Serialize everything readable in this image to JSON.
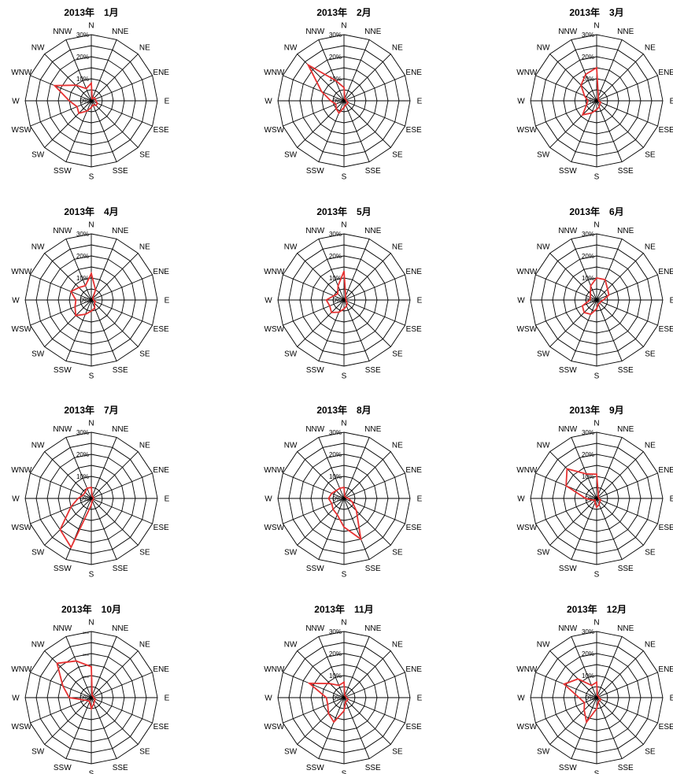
{
  "chart_data": [
    {
      "type": "radar",
      "title": "2013年　1月",
      "directions": [
        "N",
        "NNE",
        "NE",
        "ENE",
        "E",
        "ESE",
        "SE",
        "SSE",
        "S",
        "SSW",
        "SW",
        "WSW",
        "W",
        "WNW",
        "NW",
        "NNW"
      ],
      "rlim": [
        0,
        30
      ],
      "r_ticks": [
        "0%",
        "10%",
        "20%",
        "30%"
      ],
      "series": [
        {
          "values": [
            8,
            1,
            2,
            2,
            2,
            3,
            3,
            2,
            3,
            5,
            8,
            7,
            10,
            18,
            10,
            6
          ]
        }
      ]
    },
    {
      "type": "radar",
      "title": "2013年　2月",
      "directions": [
        "N",
        "NNE",
        "NE",
        "ENE",
        "E",
        "ESE",
        "SE",
        "SSE",
        "S",
        "SSW",
        "SW",
        "WSW",
        "W",
        "WNW",
        "NW",
        "NNW"
      ],
      "rlim": [
        0,
        30
      ],
      "r_ticks": [
        "0%",
        "10%",
        "20%",
        "30%"
      ],
      "series": [
        {
          "values": [
            6,
            1,
            1,
            1,
            1,
            2,
            2,
            2,
            3,
            6,
            5,
            4,
            6,
            11,
            23,
            10
          ]
        }
      ]
    },
    {
      "type": "radar",
      "title": "2013年　3月",
      "directions": [
        "N",
        "NNE",
        "NE",
        "ENE",
        "E",
        "ESE",
        "SE",
        "SSE",
        "S",
        "SSW",
        "SW",
        "WSW",
        "W",
        "WNW",
        "NW",
        "NNW"
      ],
      "rlim": [
        0,
        30
      ],
      "r_ticks": [
        "0%",
        "10%",
        "20%",
        "30%"
      ],
      "series": [
        {
          "values": [
            15,
            2,
            1,
            1,
            1,
            2,
            2,
            3,
            4,
            6,
            9,
            5,
            4,
            6,
            10,
            13
          ]
        }
      ]
    },
    {
      "type": "radar",
      "title": "2013年　4月",
      "directions": [
        "N",
        "NNE",
        "NE",
        "ENE",
        "E",
        "ESE",
        "SE",
        "SSE",
        "S",
        "SSW",
        "SW",
        "WSW",
        "W",
        "WNW",
        "NW",
        "NNW"
      ],
      "rlim": [
        0,
        30
      ],
      "r_ticks": [
        "0%",
        "10%",
        "20%",
        "30%"
      ],
      "series": [
        {
          "values": [
            12,
            5,
            1,
            1,
            1,
            2,
            2,
            4,
            5,
            7,
            10,
            8,
            7,
            10,
            8,
            7
          ]
        }
      ]
    },
    {
      "type": "radar",
      "title": "2013年　5月",
      "directions": [
        "N",
        "NNE",
        "NE",
        "ENE",
        "E",
        "ESE",
        "SE",
        "SSE",
        "S",
        "SSW",
        "SW",
        "WSW",
        "W",
        "WNW",
        "NW",
        "NNW"
      ],
      "rlim": [
        0,
        30
      ],
      "r_ticks": [
        "0%",
        "10%",
        "20%",
        "30%"
      ],
      "series": [
        {
          "values": [
            13,
            2,
            1,
            1,
            1,
            1,
            2,
            3,
            4,
            6,
            8,
            7,
            8,
            5,
            4,
            7
          ]
        }
      ]
    },
    {
      "type": "radar",
      "title": "2013年　6月",
      "directions": [
        "N",
        "NNE",
        "NE",
        "ENE",
        "E",
        "ESE",
        "SE",
        "SSE",
        "S",
        "SSW",
        "SW",
        "WSW",
        "W",
        "WNW",
        "NW",
        "NNW"
      ],
      "rlim": [
        0,
        30
      ],
      "r_ticks": [
        "0%",
        "10%",
        "20%",
        "30%"
      ],
      "series": [
        {
          "values": [
            10,
            10,
            7,
            6,
            3,
            2,
            2,
            2,
            4,
            7,
            8,
            7,
            3,
            3,
            4,
            7
          ]
        }
      ]
    },
    {
      "type": "radar",
      "title": "2013年　7月",
      "directions": [
        "N",
        "NNE",
        "NE",
        "ENE",
        "E",
        "ESE",
        "SE",
        "SSE",
        "S",
        "SSW",
        "SW",
        "WSW",
        "W",
        "WNW",
        "NW",
        "NNW"
      ],
      "rlim": [
        0,
        30
      ],
      "r_ticks": [
        "0%",
        "10%",
        "20%",
        "30%"
      ],
      "series": [
        {
          "values": [
            5,
            1,
            1,
            1,
            1,
            1,
            1,
            1,
            3,
            24,
            20,
            10,
            6,
            4,
            4,
            5
          ]
        }
      ]
    },
    {
      "type": "radar",
      "title": "2013年　8月",
      "directions": [
        "N",
        "NNE",
        "NE",
        "ENE",
        "E",
        "ESE",
        "SE",
        "SSE",
        "S",
        "SSW",
        "SW",
        "WSW",
        "W",
        "WNW",
        "NW",
        "NNW"
      ],
      "rlim": [
        0,
        30
      ],
      "r_ticks": [
        "0%",
        "10%",
        "20%",
        "30%"
      ],
      "series": [
        {
          "values": [
            5,
            1,
            1,
            1,
            2,
            4,
            8,
            20,
            13,
            8,
            7,
            6,
            7,
            6,
            5,
            5
          ]
        }
      ]
    },
    {
      "type": "radar",
      "title": "2013年　9月",
      "directions": [
        "N",
        "NNE",
        "NE",
        "ENE",
        "E",
        "ESE",
        "SE",
        "SSE",
        "S",
        "SSW",
        "SW",
        "WSW",
        "W",
        "WNW",
        "NW",
        "NNW"
      ],
      "rlim": [
        0,
        30
      ],
      "r_ticks": [
        "0%",
        "10%",
        "20%",
        "30%"
      ],
      "series": [
        {
          "values": [
            11,
            2,
            1,
            1,
            1,
            2,
            2,
            3,
            4,
            2,
            1,
            2,
            5,
            15,
            19,
            12
          ]
        }
      ]
    },
    {
      "type": "radar",
      "title": "2013年　10月",
      "directions": [
        "N",
        "NNE",
        "NE",
        "ENE",
        "E",
        "ESE",
        "SE",
        "SSE",
        "S",
        "SSW",
        "SW",
        "WSW",
        "W",
        "WNW",
        "NW",
        "NNW"
      ],
      "rlim": [
        0,
        30
      ],
      "r_ticks": [
        "0%",
        "10%",
        "20%",
        "30%"
      ],
      "series": [
        {
          "values": [
            14,
            1,
            1,
            1,
            1,
            2,
            2,
            3,
            5,
            2,
            2,
            3,
            10,
            14,
            22,
            18
          ]
        }
      ]
    },
    {
      "type": "radar",
      "title": "2013年　11月",
      "directions": [
        "N",
        "NNE",
        "NE",
        "ENE",
        "E",
        "ESE",
        "SE",
        "SSE",
        "S",
        "SSW",
        "SW",
        "WSW",
        "W",
        "WNW",
        "NW",
        "NNW"
      ],
      "rlim": [
        0,
        30
      ],
      "r_ticks": [
        "0%",
        "10%",
        "20%",
        "30%"
      ],
      "series": [
        {
          "values": [
            7,
            1,
            1,
            1,
            1,
            2,
            2,
            2,
            6,
            12,
            10,
            8,
            8,
            17,
            9,
            6
          ]
        }
      ]
    },
    {
      "type": "radar",
      "title": "2013年　12月",
      "directions": [
        "N",
        "NNE",
        "NE",
        "ENE",
        "E",
        "ESE",
        "SE",
        "SSE",
        "S",
        "SSW",
        "SW",
        "WSW",
        "W",
        "WNW",
        "NW",
        "NNW"
      ],
      "rlim": [
        0,
        30
      ],
      "r_ticks": [
        "0%",
        "10%",
        "20%",
        "30%"
      ],
      "series": [
        {
          "values": [
            7,
            1,
            1,
            1,
            1,
            2,
            2,
            2,
            5,
            12,
            8,
            6,
            8,
            16,
            12,
            6
          ]
        }
      ]
    }
  ],
  "colors": {
    "series": "#e63232",
    "grid": "#000000",
    "text": "#000000"
  }
}
